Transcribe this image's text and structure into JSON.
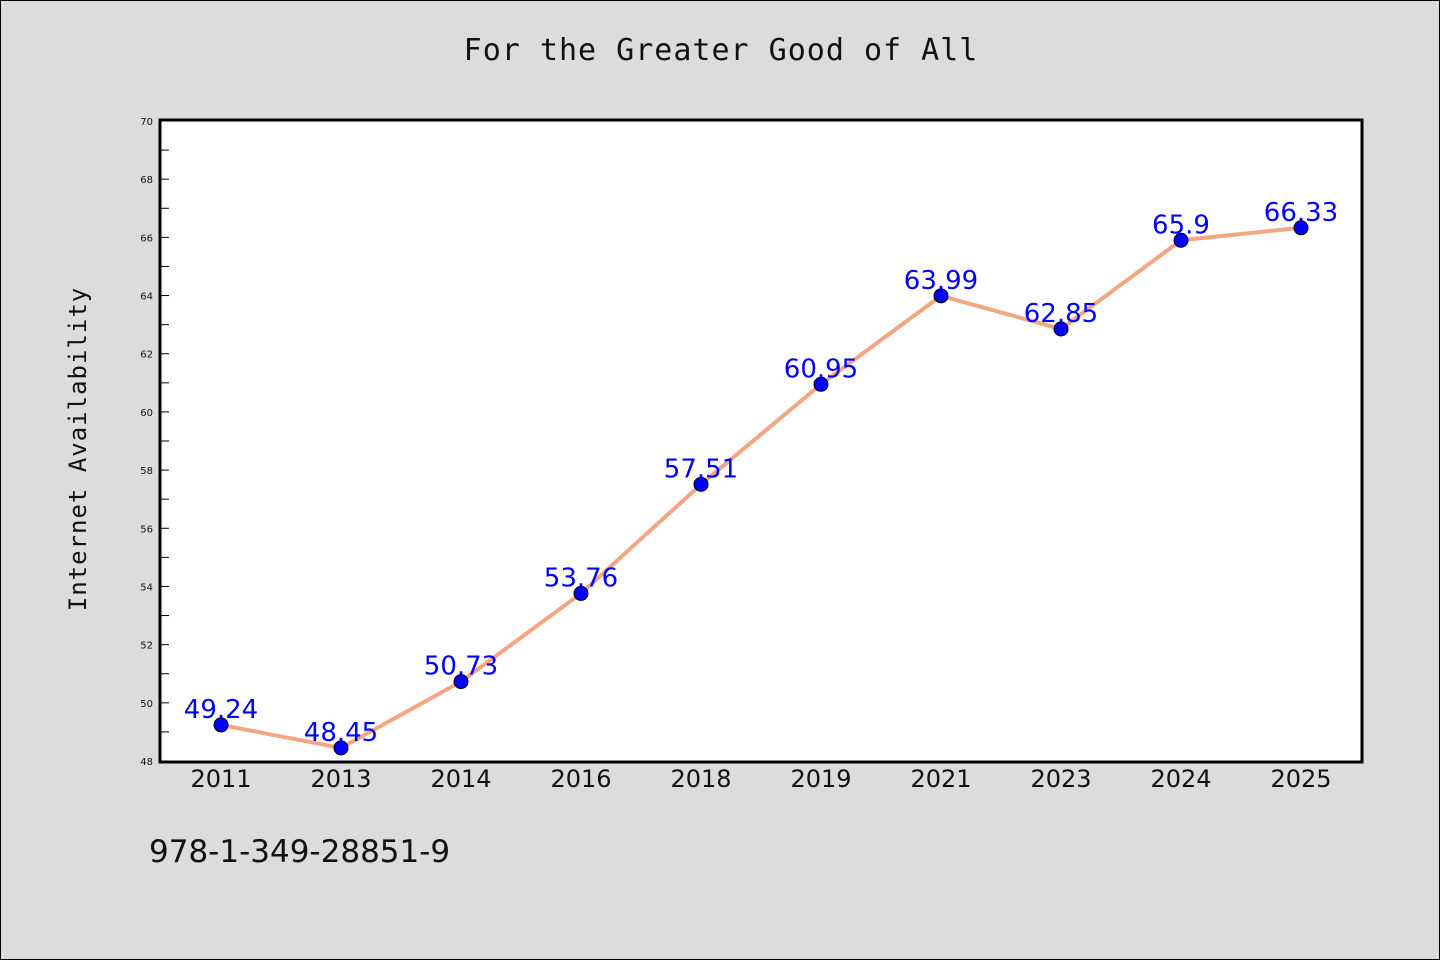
{
  "chart_data": {
    "type": "line",
    "title": "For the Greater Good of All",
    "xlabel": "",
    "ylabel": "Internet Availability",
    "categories": [
      "2011",
      "2013",
      "2014",
      "2016",
      "2018",
      "2019",
      "2021",
      "2023",
      "2024",
      "2025"
    ],
    "values": [
      49.24,
      48.45,
      50.73,
      53.76,
      57.51,
      60.95,
      63.99,
      62.85,
      65.9,
      66.33
    ],
    "data_labels": [
      "49.24",
      "48.45",
      "50.73",
      "53.76",
      "57.51",
      "60.95",
      "63.99",
      "62.85",
      "65.9",
      "66.33"
    ],
    "ylim": [
      48,
      70
    ],
    "yticks": [
      "48",
      "50",
      "52",
      "54",
      "56",
      "58",
      "60",
      "62",
      "64",
      "66",
      "68",
      "70"
    ],
    "grid": false,
    "legend": "none",
    "colors": {
      "line": "#f4a582",
      "marker": "#0000ff",
      "label": "#0000ff",
      "background": "#dcdcdc",
      "plot_background": "#ffffff"
    }
  },
  "footer": {
    "code": "978-1-349-28851-9"
  }
}
